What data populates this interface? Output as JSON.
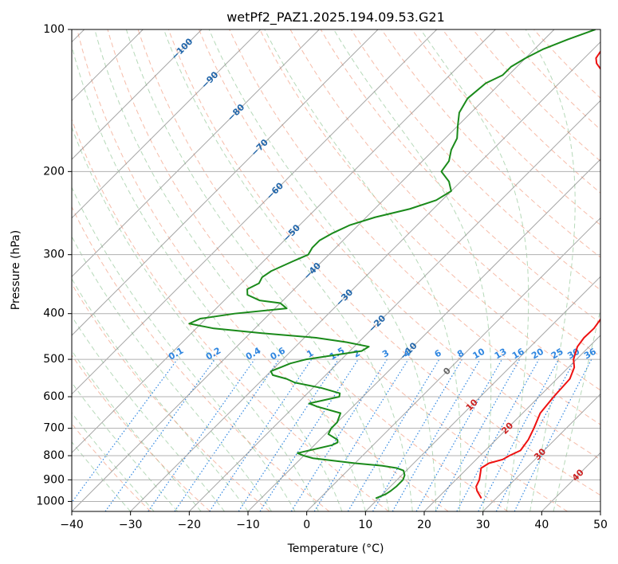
{
  "chart_data": {
    "type": "line",
    "title": "wetPf2_PAZ1.2025.194.09.53.G21",
    "xlabel": "Temperature (°C)",
    "ylabel": "Pressure (hPa)",
    "xlim": [
      -40,
      50
    ],
    "ylim": [
      1050,
      100
    ],
    "y_scale": "log",
    "x_ticks": [
      "−40",
      "−30",
      "−20",
      "−10",
      "0",
      "10",
      "20",
      "30",
      "40",
      "50"
    ],
    "x_tick_values": [
      -40,
      -30,
      -20,
      -10,
      0,
      10,
      20,
      30,
      40,
      50
    ],
    "y_ticks": [
      "100",
      "200",
      "300",
      "400",
      "500",
      "600",
      "700",
      "800",
      "900",
      "1000"
    ],
    "y_tick_values": [
      100,
      200,
      300,
      400,
      500,
      600,
      700,
      800,
      900,
      1000
    ],
    "grid": true,
    "skew_deg": 45,
    "colors": {
      "temperature": "#ee1111",
      "dewpoint": "#1a8a1a",
      "isotherm": "#888888",
      "dry_adiabat": "#f2a085",
      "moist_adiabat": "#86c08a",
      "mixing_ratio": "#2f86e0",
      "isotherm_label": "#2266aa",
      "mixing_label": "#2f86e0",
      "special_label": "#cc2222"
    },
    "series": [
      {
        "key": "temperature",
        "values": [
          [
            985,
            27.5
          ],
          [
            950,
            25.5
          ],
          [
            930,
            24.6
          ],
          [
            900,
            24.0
          ],
          [
            870,
            23.0
          ],
          [
            850,
            22.3
          ],
          [
            830,
            22.8
          ],
          [
            815,
            24.5
          ],
          [
            800,
            25.0
          ],
          [
            780,
            26.0
          ],
          [
            740,
            25.5
          ],
          [
            700,
            24.5
          ],
          [
            650,
            23.0
          ],
          [
            600,
            22.5
          ],
          [
            550,
            22.2
          ],
          [
            520,
            21.0
          ],
          [
            500,
            19.5
          ],
          [
            470,
            18.0
          ],
          [
            450,
            17.6
          ],
          [
            430,
            17.7
          ],
          [
            400,
            17.0
          ],
          [
            370,
            14.5
          ],
          [
            340,
            11.5
          ],
          [
            300,
            7.5
          ],
          [
            270,
            3.5
          ],
          [
            250,
            0.5
          ],
          [
            220,
            -4.0
          ],
          [
            200,
            -7.0
          ],
          [
            190,
            -7.5
          ],
          [
            180,
            -8.5
          ],
          [
            170,
            -10.5
          ],
          [
            160,
            -13.5
          ],
          [
            150,
            -16.5
          ],
          [
            140,
            -19.0
          ],
          [
            130,
            -22.0
          ],
          [
            122,
            -25.0
          ],
          [
            118,
            -27.0
          ],
          [
            115,
            -28.0
          ],
          [
            110,
            -28.5
          ],
          [
            105,
            -30.0
          ],
          [
            100,
            -32.0
          ]
        ]
      },
      {
        "key": "dewpoint",
        "values": [
          [
            985,
            9.5
          ],
          [
            975,
            10.0
          ],
          [
            965,
            10.5
          ],
          [
            950,
            10.8
          ],
          [
            930,
            11.0
          ],
          [
            900,
            11.0
          ],
          [
            880,
            10.5
          ],
          [
            860,
            9.5
          ],
          [
            850,
            8.0
          ],
          [
            840,
            5.0
          ],
          [
            830,
            0.0
          ],
          [
            820,
            -4.0
          ],
          [
            810,
            -8.0
          ],
          [
            800,
            -10.0
          ],
          [
            790,
            -11.5
          ],
          [
            780,
            -10.0
          ],
          [
            760,
            -7.0
          ],
          [
            750,
            -6.5
          ],
          [
            740,
            -7.0
          ],
          [
            720,
            -9.5
          ],
          [
            700,
            -10.0
          ],
          [
            680,
            -10.0
          ],
          [
            650,
            -11.0
          ],
          [
            630,
            -16.0
          ],
          [
            620,
            -18.0
          ],
          [
            610,
            -16.0
          ],
          [
            600,
            -14.0
          ],
          [
            590,
            -14.5
          ],
          [
            575,
            -18.5
          ],
          [
            560,
            -24.0
          ],
          [
            550,
            -26.0
          ],
          [
            540,
            -29.0
          ],
          [
            530,
            -30.0
          ],
          [
            520,
            -29.0
          ],
          [
            510,
            -28.0
          ],
          [
            500,
            -26.0
          ],
          [
            490,
            -22.0
          ],
          [
            480,
            -18.0
          ],
          [
            470,
            -17.5
          ],
          [
            460,
            -22.0
          ],
          [
            450,
            -28.0
          ],
          [
            440,
            -38.0
          ],
          [
            430,
            -47.0
          ],
          [
            420,
            -52.0
          ],
          [
            410,
            -51.0
          ],
          [
            400,
            -46.0
          ],
          [
            390,
            -38.0
          ],
          [
            380,
            -40.0
          ],
          [
            375,
            -44.0
          ],
          [
            365,
            -47.0
          ],
          [
            355,
            -48.0
          ],
          [
            345,
            -47.0
          ],
          [
            335,
            -47.5
          ],
          [
            325,
            -47.0
          ],
          [
            310,
            -45.0
          ],
          [
            300,
            -43.5
          ],
          [
            290,
            -44.0
          ],
          [
            280,
            -44.0
          ],
          [
            270,
            -43.0
          ],
          [
            260,
            -41.5
          ],
          [
            250,
            -38.5
          ],
          [
            240,
            -34.0
          ],
          [
            230,
            -31.0
          ],
          [
            220,
            -30.0
          ],
          [
            210,
            -32.0
          ],
          [
            200,
            -35.0
          ],
          [
            190,
            -35.5
          ],
          [
            180,
            -37.0
          ],
          [
            170,
            -38.0
          ],
          [
            160,
            -40.0
          ],
          [
            150,
            -42.0
          ],
          [
            140,
            -43.0
          ],
          [
            130,
            -42.5
          ],
          [
            125,
            -41.0
          ],
          [
            120,
            -41.0
          ],
          [
            115,
            -40.0
          ],
          [
            110,
            -38.5
          ],
          [
            105,
            -36.0
          ],
          [
            100,
            -33.0
          ]
        ]
      }
    ],
    "isotherm_labels": [
      "−100",
      "−90",
      "−80",
      "−70",
      "−60",
      "−50",
      "−40",
      "−30",
      "−20",
      "−10",
      "0"
    ],
    "isotherm_label_temps": [
      -100,
      -90,
      -80,
      -70,
      -60,
      -50,
      -40,
      -30,
      -20,
      -10,
      0
    ],
    "isotherm_label_pressures": [
      110,
      128,
      150,
      178,
      220,
      270,
      325,
      370,
      420,
      480,
      530
    ],
    "mixing_ratio_labels": [
      "0.1",
      "0.2",
      "0.4",
      "0.6",
      "1",
      "1.5",
      "2",
      "3",
      "4",
      "6",
      "8",
      "10",
      "13",
      "16",
      "20",
      "25",
      "30",
      "36"
    ],
    "mixing_ratio_values": [
      0.1,
      0.2,
      0.4,
      0.6,
      1,
      1.5,
      2,
      3,
      4,
      6,
      8,
      10,
      13,
      16,
      20,
      25,
      30,
      36
    ],
    "special_labels": [
      "10",
      "20",
      "30",
      "40"
    ],
    "special_label_temps": [
      10,
      20,
      30,
      40
    ],
    "special_label_pressures": [
      625,
      700,
      795,
      880
    ]
  }
}
